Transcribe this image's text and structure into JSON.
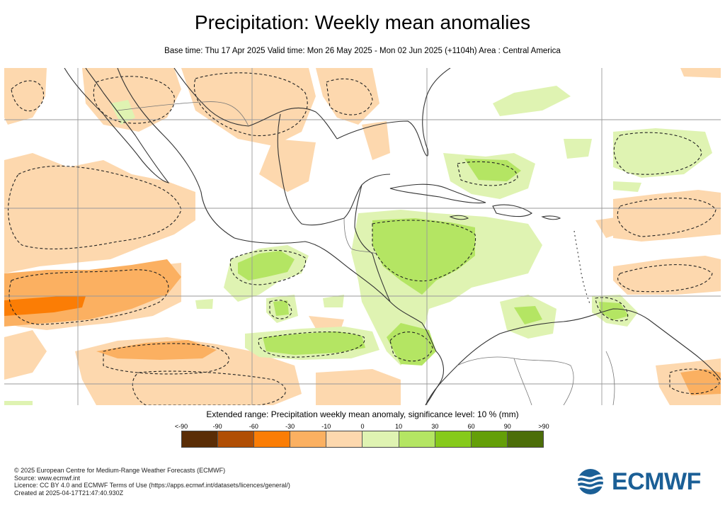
{
  "title": "Precipitation: Weekly mean anomalies",
  "subtitle": "Base time: Thu 17 Apr 2025 Valid time: Mon 26 May 2025 - Mon 02 Jun 2025 (+1104h) Area : Central America",
  "legend": {
    "title": "Extended range: Precipitation weekly mean anomaly, significance level: 10 % (mm)",
    "labels": [
      "<-90",
      "-90",
      "-60",
      "-30",
      "-10",
      "0",
      "10",
      "30",
      "60",
      "90",
      ">90"
    ],
    "colors": [
      "#5a2d06",
      "#b04e04",
      "#fb7d05",
      "#fbb061",
      "#fdd8ae",
      "#dff3b2",
      "#b4e563",
      "#86ca1b",
      "#649f08",
      "#4c6e09"
    ]
  },
  "footer": {
    "line1": "© 2025 European Centre for Medium-Range Weather Forecasts (ECMWF)",
    "line2": "Source: www.ecmwf.int",
    "line3": "Licence: CC BY 4.0 and ECMWF Terms of Use (https://apps.ecmwf.int/datasets/licences/general/)",
    "line4": "Created at 2025-04-17T21:47:40.930Z"
  },
  "logo": {
    "text": "ECMWF",
    "color": "#1b5f96"
  }
}
